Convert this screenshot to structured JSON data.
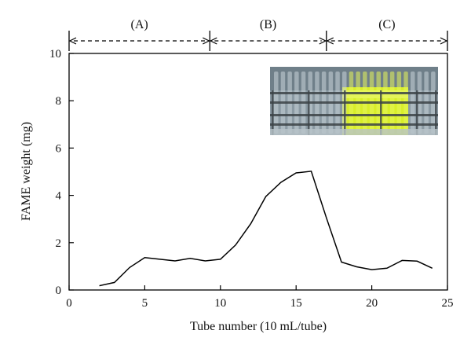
{
  "chart_data": {
    "type": "line",
    "xlabel": "Tube number (10 mL/tube)",
    "ylabel": "FAME weight (mg)",
    "xlim": [
      0,
      25
    ],
    "ylim": [
      0,
      10
    ],
    "x_ticks": [
      0,
      5,
      10,
      15,
      20,
      25
    ],
    "y_ticks": [
      0,
      2,
      4,
      6,
      8,
      10
    ],
    "grid": false,
    "series": [
      {
        "x": [
          2,
          3,
          4,
          5,
          6,
          7,
          8,
          9,
          10,
          11,
          12,
          13,
          14,
          15,
          16,
          17,
          18,
          19,
          20,
          21,
          22,
          23,
          24
        ],
        "y": [
          0.18,
          0.32,
          0.95,
          1.37,
          1.3,
          1.23,
          1.34,
          1.23,
          1.3,
          1.9,
          2.8,
          3.95,
          4.55,
          4.95,
          5.02,
          3.05,
          1.18,
          0.98,
          0.86,
          0.92,
          1.25,
          1.22,
          0.92
        ]
      }
    ],
    "regions": [
      {
        "label": "(A)",
        "from": 0,
        "to": 9.3
      },
      {
        "label": "(B)",
        "from": 9.3,
        "to": 17
      },
      {
        "label": "(C)",
        "from": 17,
        "to": 25
      }
    ]
  },
  "inset_photo": {
    "description_icon": "test-tube-rack-photo",
    "colors": {
      "clear_tube": "#c9d4d8",
      "yellow_tube": "#d8ee2a",
      "rack": "#3c4347",
      "background": "#8b9aa3"
    }
  }
}
